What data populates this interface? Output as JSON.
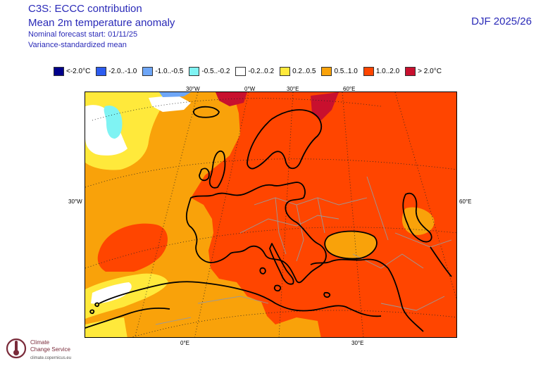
{
  "header": {
    "title_line1": "C3S: ECCC contribution",
    "title_line2": "Mean 2m temperature anomaly",
    "forecast_start": "Nominal forecast start: 01/11/25",
    "method": "Variance-standardized mean",
    "season": "DJF 2025/26"
  },
  "legend": [
    {
      "label": "<-2.0°C",
      "color": "#00008b"
    },
    {
      "label": "-2.0..-1.0",
      "color": "#2c5cf0"
    },
    {
      "label": "-1.0..-0.5",
      "color": "#6ea6f7"
    },
    {
      "label": "-0.5..-0.2",
      "color": "#7ff3f3"
    },
    {
      "label": "-0.2..0.2",
      "color": "#ffffff"
    },
    {
      "label": "0.2..0.5",
      "color": "#ffe93b"
    },
    {
      "label": "0.5..1.0",
      "color": "#f9a20a"
    },
    {
      "label": "1.0..2.0",
      "color": "#ff4500"
    },
    {
      "label": "> 2.0°C",
      "color": "#c8102e"
    }
  ],
  "axes": {
    "top": [
      "30°W",
      "0°W",
      "30°E",
      "60°E"
    ],
    "left": "30°W",
    "right": "60°E",
    "bottom": [
      "0°E",
      "30°E"
    ]
  },
  "logo": {
    "line1": "Climate",
    "line2": "Change Service",
    "url": "climate.copernicus.eu",
    "icon": "thermometer-logo-icon"
  }
}
